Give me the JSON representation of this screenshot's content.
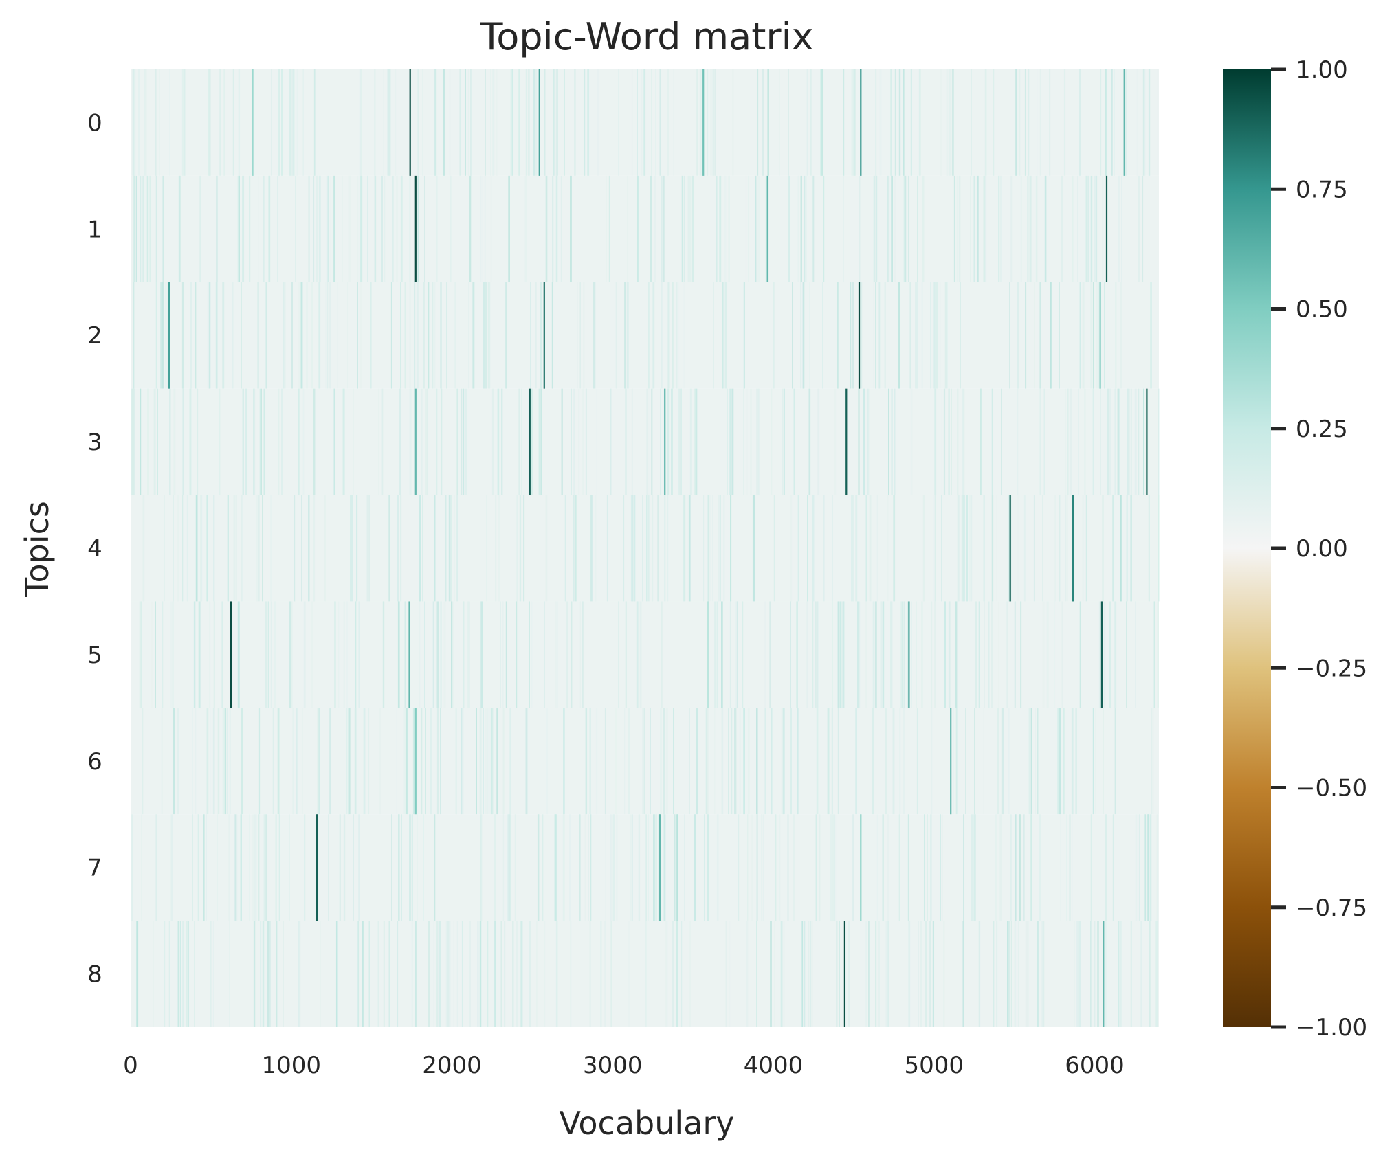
{
  "chart_data": {
    "type": "heatmap",
    "title": "Topic-Word matrix",
    "xlabel": "Vocabulary",
    "ylabel": "Topics",
    "rows": [
      "0",
      "1",
      "2",
      "3",
      "4",
      "5",
      "6",
      "7",
      "8"
    ],
    "x_range": [
      0,
      6400
    ],
    "x_ticks": [
      0,
      1000,
      2000,
      3000,
      4000,
      5000,
      6000
    ],
    "x_tick_labels": [
      "0",
      "1000",
      "2000",
      "3000",
      "4000",
      "5000",
      "6000"
    ],
    "colorbar": {
      "min": -1.0,
      "max": 1.0,
      "ticks": [
        1.0,
        0.75,
        0.5,
        0.25,
        0.0,
        -0.25,
        -0.5,
        -0.75,
        -1.0
      ],
      "tick_labels": [
        "1.00",
        "0.75",
        "0.50",
        "0.25",
        "0.00",
        "−0.25",
        "−0.50",
        "−0.75",
        "−1.00"
      ],
      "colormap": "BrBG",
      "stops": [
        {
          "v": -1.0,
          "color": "#543005"
        },
        {
          "v": -0.75,
          "color": "#8c510a"
        },
        {
          "v": -0.5,
          "color": "#bf812d"
        },
        {
          "v": -0.25,
          "color": "#dfc27d"
        },
        {
          "v": 0.0,
          "color": "#f5f5f5"
        },
        {
          "v": 0.25,
          "color": "#c7eae5"
        },
        {
          "v": 0.5,
          "color": "#80cdc1"
        },
        {
          "v": 0.75,
          "color": "#35978f"
        },
        {
          "v": 1.0,
          "color": "#003c30"
        }
      ]
    },
    "background_value": 0.05,
    "peaks": [
      {
        "row": 0,
        "col": 1735,
        "value": 0.95
      },
      {
        "row": 0,
        "col": 2540,
        "value": 0.7
      },
      {
        "row": 0,
        "col": 3560,
        "value": 0.55
      },
      {
        "row": 0,
        "col": 4540,
        "value": 0.75
      },
      {
        "row": 0,
        "col": 6180,
        "value": 0.6
      },
      {
        "row": 0,
        "col": 755,
        "value": 0.4
      },
      {
        "row": 1,
        "col": 1770,
        "value": 0.95
      },
      {
        "row": 1,
        "col": 3960,
        "value": 0.6
      },
      {
        "row": 1,
        "col": 6070,
        "value": 0.9
      },
      {
        "row": 2,
        "col": 235,
        "value": 0.7
      },
      {
        "row": 2,
        "col": 2570,
        "value": 0.85
      },
      {
        "row": 2,
        "col": 4530,
        "value": 0.95
      },
      {
        "row": 2,
        "col": 6030,
        "value": 0.5
      },
      {
        "row": 3,
        "col": 1770,
        "value": 0.6
      },
      {
        "row": 3,
        "col": 2480,
        "value": 0.9
      },
      {
        "row": 3,
        "col": 3320,
        "value": 0.6
      },
      {
        "row": 3,
        "col": 4450,
        "value": 0.9
      },
      {
        "row": 3,
        "col": 6320,
        "value": 0.9
      },
      {
        "row": 4,
        "col": 5470,
        "value": 0.9
      },
      {
        "row": 4,
        "col": 5860,
        "value": 0.8
      },
      {
        "row": 5,
        "col": 620,
        "value": 0.95
      },
      {
        "row": 5,
        "col": 1730,
        "value": 0.6
      },
      {
        "row": 5,
        "col": 4840,
        "value": 0.7
      },
      {
        "row": 5,
        "col": 6040,
        "value": 0.9
      },
      {
        "row": 6,
        "col": 1770,
        "value": 0.5
      },
      {
        "row": 6,
        "col": 5100,
        "value": 0.6
      },
      {
        "row": 7,
        "col": 1155,
        "value": 0.9
      },
      {
        "row": 7,
        "col": 3290,
        "value": 0.6
      },
      {
        "row": 7,
        "col": 4540,
        "value": 0.45
      },
      {
        "row": 8,
        "col": 4440,
        "value": 0.95
      },
      {
        "row": 8,
        "col": 6050,
        "value": 0.6
      }
    ],
    "grid": false
  }
}
